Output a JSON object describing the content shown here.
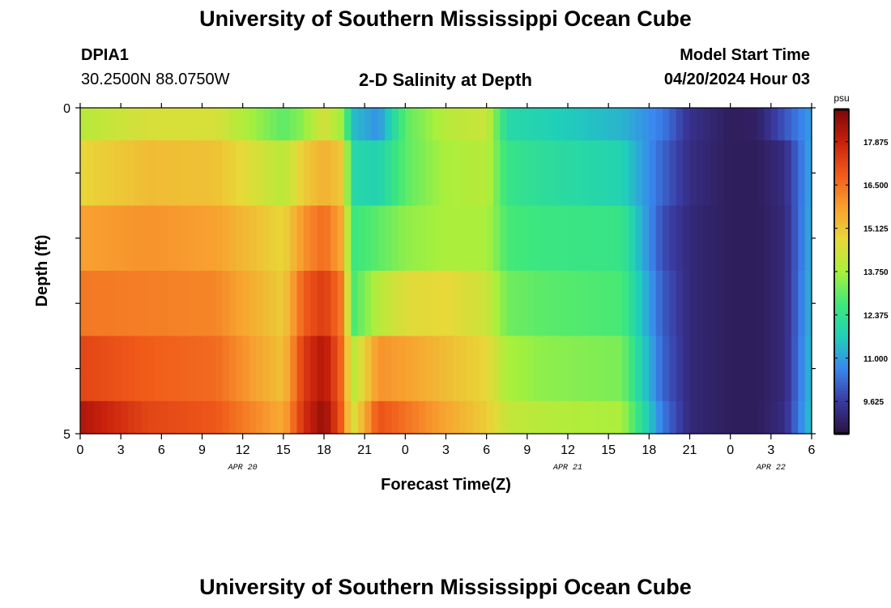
{
  "header": {
    "title": "University of Southern Mississippi Ocean Cube",
    "station_id": "DPIA1",
    "coordinates": "30.2500N  88.0750W",
    "plot_title": "2-D Salinity at Depth",
    "model_label": "Model Start Time",
    "model_time": "04/20/2024 Hour 03"
  },
  "footer": {
    "title": "University of Southern Mississippi Ocean Cube"
  },
  "chart_data": {
    "type": "heatmap",
    "title": "2-D Salinity at Depth",
    "xlabel": "Forecast Time(Z)",
    "ylabel": "Depth (ft)",
    "x_range_hours": [
      0,
      54
    ],
    "ylim": [
      0,
      5
    ],
    "y_ticks": [
      0,
      5
    ],
    "x_tick_labels": [
      "0",
      "3",
      "6",
      "9",
      "12",
      "15",
      "18",
      "21",
      "0",
      "3",
      "6",
      "9",
      "12",
      "15",
      "18",
      "21",
      "0",
      "3",
      "6"
    ],
    "date_labels": [
      {
        "label": "APR 20",
        "hour": 12
      },
      {
        "label": "APR 21",
        "hour": 36
      },
      {
        "label": "APR 22",
        "hour": 51
      }
    ],
    "colorbar": {
      "unit": "psu",
      "min": 8.6,
      "max": 18.9,
      "tick_labels": [
        "17.875",
        "16.500",
        "15.125",
        "13.750",
        "12.375",
        "11.000",
        "9.625"
      ],
      "stops": [
        "#2b1240",
        "#3a3aa0",
        "#3a86f0",
        "#1fd0b8",
        "#3fe87a",
        "#a8f03c",
        "#e8d838",
        "#f8a030",
        "#f05a1a",
        "#c8200c",
        "#7a0808"
      ]
    },
    "depth_layers": [
      "0-0.5",
      "0.5-1.5",
      "1.5-2.5",
      "2.5-3.5",
      "3.5-4.5",
      "4.5-5"
    ],
    "key_times": [
      0,
      5,
      10,
      15,
      16.5,
      18,
      19.5,
      20,
      22,
      24,
      27,
      30,
      31.5,
      34,
      40,
      43,
      45,
      48,
      50,
      52,
      54
    ],
    "salinity": [
      [
        14.0,
        14.5,
        14.5,
        13.0,
        13.5,
        14.5,
        13.5,
        11.5,
        10.8,
        13.0,
        14.0,
        14.3,
        12.0,
        11.8,
        11.3,
        10.5,
        9.4,
        8.9,
        9.0,
        10.0,
        11.0
      ],
      [
        14.8,
        15.3,
        15.2,
        14.0,
        15.0,
        15.5,
        15.0,
        12.0,
        11.8,
        13.0,
        13.8,
        14.0,
        12.5,
        12.2,
        11.8,
        10.2,
        9.3,
        8.9,
        8.9,
        9.3,
        11.2
      ],
      [
        15.8,
        16.0,
        15.8,
        14.8,
        16.0,
        16.6,
        15.5,
        12.6,
        13.0,
        13.5,
        13.8,
        13.8,
        12.8,
        12.6,
        12.5,
        9.9,
        9.2,
        8.9,
        8.9,
        9.2,
        11.3
      ],
      [
        16.4,
        16.3,
        16.2,
        15.0,
        16.8,
        17.4,
        16.2,
        12.7,
        14.0,
        14.6,
        14.8,
        14.3,
        13.2,
        13.0,
        12.8,
        10.1,
        9.2,
        8.9,
        8.9,
        9.2,
        11.4
      ],
      [
        17.2,
        16.8,
        16.6,
        15.2,
        17.4,
        18.2,
        16.4,
        13.8,
        16.0,
        15.8,
        15.3,
        14.8,
        13.8,
        13.5,
        13.3,
        10.2,
        9.2,
        8.9,
        8.9,
        9.2,
        11.5
      ],
      [
        18.2,
        17.2,
        16.9,
        15.6,
        17.6,
        18.6,
        16.5,
        14.2,
        17.0,
        16.5,
        15.7,
        15.0,
        14.2,
        14.0,
        13.8,
        10.5,
        9.2,
        8.9,
        8.9,
        9.3,
        11.6
      ]
    ]
  }
}
